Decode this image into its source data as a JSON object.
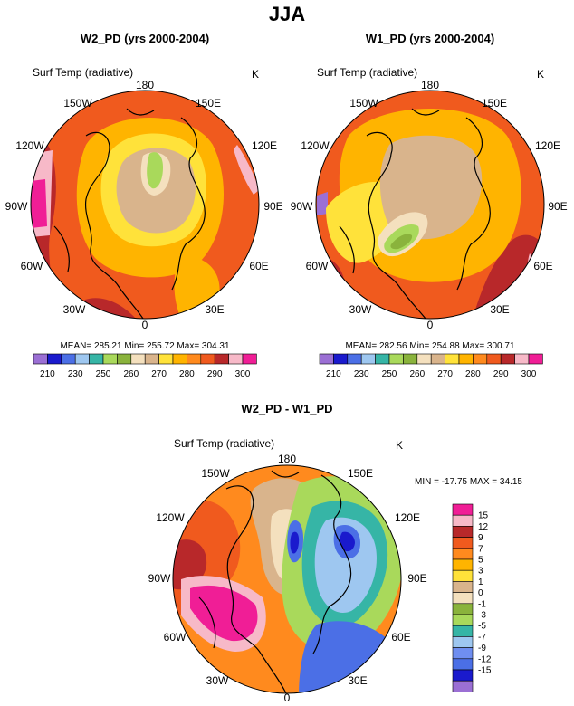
{
  "page_title": "JJA",
  "colors": {
    "cbar": [
      "#9b6fd4",
      "#1a1acd",
      "#4b6fe6",
      "#9ec7f0",
      "#36b5a6",
      "#a9d95b",
      "#8ab33c",
      "#f4e0be",
      "#d9b48c",
      "#ffe23a",
      "#ffb400",
      "#ff8a1e",
      "#f05a1e",
      "#b8282a",
      "#f7b9c8",
      "#f01e96"
    ],
    "diff_cbar": [
      "#9b6fd4",
      "#1a1acd",
      "#4b6fe6",
      "#6f8ef0",
      "#9ec7f0",
      "#36b5a6",
      "#a9d95b",
      "#8ab33c",
      "#f4e0be",
      "#d9b48c",
      "#ffe23a",
      "#ffb400",
      "#ff8a1e",
      "#f05a1e",
      "#b8282a",
      "#f7b9c8",
      "#f01e96"
    ]
  },
  "chart_data": [
    {
      "type": "heatmap",
      "title": "W2_PD (yrs 2000-2004)",
      "variable": "Surf Temp (radiative)",
      "units": "K",
      "projection": "north polar stereographic",
      "lon_labels": [
        "180",
        "150E",
        "120E",
        "90E",
        "60E",
        "30E",
        "0",
        "30W",
        "60W",
        "90W",
        "120W",
        "150W"
      ],
      "stats_text": "MEAN= 285.21  Min= 255.72  Max= 304.31",
      "colorbar_levels": [
        "210",
        "230",
        "250",
        "260",
        "270",
        "280",
        "290",
        "300"
      ]
    },
    {
      "type": "heatmap",
      "title": "W1_PD (yrs 2000-2004)",
      "variable": "Surf Temp (radiative)",
      "units": "K",
      "projection": "north polar stereographic",
      "lon_labels": [
        "180",
        "150E",
        "120E",
        "90E",
        "60E",
        "30E",
        "0",
        "30W",
        "60W",
        "90W",
        "120W",
        "150W"
      ],
      "stats_text": "MEAN= 282.56  Min= 254.88  Max= 300.71",
      "colorbar_levels": [
        "210",
        "230",
        "250",
        "260",
        "270",
        "280",
        "290",
        "300"
      ]
    },
    {
      "type": "heatmap",
      "title": "W2_PD - W1_PD",
      "variable": "Surf Temp (radiative)",
      "units": "K",
      "projection": "north polar stereographic",
      "lon_labels": [
        "180",
        "150E",
        "120E",
        "90E",
        "60E",
        "30E",
        "0",
        "30W",
        "60W",
        "90W",
        "120W",
        "150W"
      ],
      "stats_text": "MIN = -17.75 MAX =  34.15",
      "colorbar_levels": [
        "15",
        "12",
        "9",
        "7",
        "5",
        "3",
        "1",
        "0",
        "-1",
        "-3",
        "-5",
        "-7",
        "-9",
        "-12",
        "-15"
      ]
    }
  ]
}
